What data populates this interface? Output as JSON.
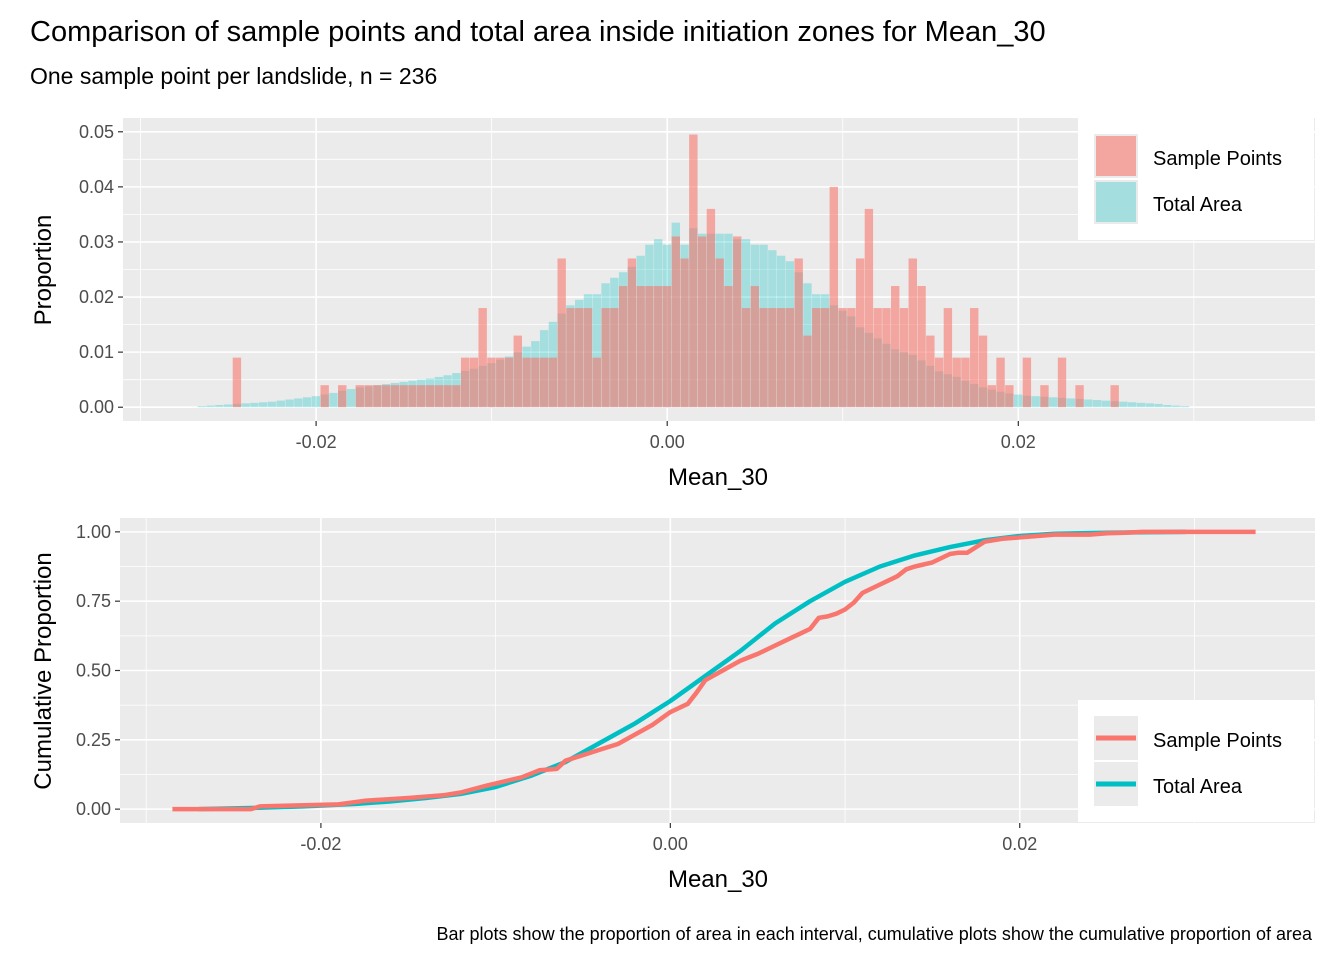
{
  "title": "Comparison of sample points and total area inside initiation zones for Mean_30",
  "subtitle": "One sample point per landslide, n = 236",
  "caption": "Bar plots show the proportion of area in each interval, cumulative plots show the cumulative proportion of area",
  "colors": {
    "sample": "#F8766D",
    "total": "#00BFC4",
    "panel_bg": "#EBEBEB",
    "grid": "#FFFFFF",
    "overlap": "#A3A3A3"
  },
  "chart_data": [
    {
      "type": "bar",
      "xlabel": "Mean_30",
      "ylabel": "Proportion",
      "xlim": [
        -0.031,
        0.0369
      ],
      "ylim": [
        -0.0025,
        0.0525
      ],
      "xticks": [
        "-0.02",
        "0.00",
        "0.02"
      ],
      "xtick_values": [
        -0.02,
        0.0,
        0.02
      ],
      "yticks": [
        "0.00",
        "0.01",
        "0.02",
        "0.03",
        "0.04",
        "0.05"
      ],
      "ytick_values": [
        0.0,
        0.01,
        0.02,
        0.03,
        0.04,
        0.05
      ],
      "legend_position": "top-right",
      "bin_width": 0.0005,
      "series": [
        {
          "name": "Sample Points",
          "color": "#F8766D",
          "bins": [
            [
              -0.0245,
              0.009
            ],
            [
              -0.0195,
              0.004
            ],
            [
              -0.0185,
              0.004
            ],
            [
              -0.0175,
              0.004
            ],
            [
              -0.017,
              0.004
            ],
            [
              -0.0165,
              0.004
            ],
            [
              -0.016,
              0.004
            ],
            [
              -0.0155,
              0.004
            ],
            [
              -0.015,
              0.004
            ],
            [
              -0.0145,
              0.004
            ],
            [
              -0.014,
              0.004
            ],
            [
              -0.0135,
              0.004
            ],
            [
              -0.013,
              0.004
            ],
            [
              -0.0125,
              0.004
            ],
            [
              -0.012,
              0.004
            ],
            [
              -0.0115,
              0.009
            ],
            [
              -0.011,
              0.009
            ],
            [
              -0.0105,
              0.018
            ],
            [
              -0.01,
              0.009
            ],
            [
              -0.0095,
              0.009
            ],
            [
              -0.009,
              0.009
            ],
            [
              -0.0085,
              0.013
            ],
            [
              -0.008,
              0.009
            ],
            [
              -0.0075,
              0.009
            ],
            [
              -0.007,
              0.009
            ],
            [
              -0.0065,
              0.009
            ],
            [
              -0.006,
              0.027
            ],
            [
              -0.0055,
              0.018
            ],
            [
              -0.005,
              0.018
            ],
            [
              -0.0045,
              0.018
            ],
            [
              -0.004,
              0.009
            ],
            [
              -0.0035,
              0.018
            ],
            [
              -0.003,
              0.018
            ],
            [
              -0.0025,
              0.022
            ],
            [
              -0.002,
              0.027
            ],
            [
              -0.0015,
              0.022
            ],
            [
              -0.001,
              0.022
            ],
            [
              -0.0005,
              0.022
            ],
            [
              0.0,
              0.022
            ],
            [
              0.0005,
              0.031
            ],
            [
              0.001,
              0.027
            ],
            [
              0.0015,
              0.0495
            ],
            [
              0.002,
              0.031
            ],
            [
              0.0025,
              0.036
            ],
            [
              0.003,
              0.027
            ],
            [
              0.0035,
              0.022
            ],
            [
              0.004,
              0.031
            ],
            [
              0.0045,
              0.018
            ],
            [
              0.005,
              0.022
            ],
            [
              0.0055,
              0.018
            ],
            [
              0.006,
              0.018
            ],
            [
              0.0065,
              0.018
            ],
            [
              0.007,
              0.018
            ],
            [
              0.0075,
              0.027
            ],
            [
              0.008,
              0.013
            ],
            [
              0.0085,
              0.018
            ],
            [
              0.009,
              0.018
            ],
            [
              0.0095,
              0.04
            ],
            [
              0.01,
              0.018
            ],
            [
              0.0105,
              0.018
            ],
            [
              0.011,
              0.027
            ],
            [
              0.0115,
              0.036
            ],
            [
              0.012,
              0.018
            ],
            [
              0.0125,
              0.018
            ],
            [
              0.013,
              0.022
            ],
            [
              0.0135,
              0.018
            ],
            [
              0.014,
              0.027
            ],
            [
              0.0145,
              0.022
            ],
            [
              0.015,
              0.013
            ],
            [
              0.0155,
              0.009
            ],
            [
              0.016,
              0.018
            ],
            [
              0.0165,
              0.009
            ],
            [
              0.017,
              0.009
            ],
            [
              0.0175,
              0.018
            ],
            [
              0.018,
              0.013
            ],
            [
              0.0185,
              0.004
            ],
            [
              0.019,
              0.009
            ],
            [
              0.0195,
              0.004
            ],
            [
              0.0205,
              0.009
            ],
            [
              0.0215,
              0.004
            ],
            [
              0.0225,
              0.009
            ],
            [
              0.0235,
              0.004
            ],
            [
              0.0255,
              0.004
            ]
          ]
        },
        {
          "name": "Total Area",
          "color": "#00BFC4",
          "bins": [
            [
              -0.0265,
              0.0002
            ],
            [
              -0.026,
              0.0003
            ],
            [
              -0.0255,
              0.0004
            ],
            [
              -0.025,
              0.0005
            ],
            [
              -0.0245,
              0.0006
            ],
            [
              -0.024,
              0.0007
            ],
            [
              -0.0235,
              0.0008
            ],
            [
              -0.023,
              0.0009
            ],
            [
              -0.0225,
              0.001
            ],
            [
              -0.022,
              0.0012
            ],
            [
              -0.0215,
              0.0014
            ],
            [
              -0.021,
              0.0016
            ],
            [
              -0.0205,
              0.0018
            ],
            [
              -0.02,
              0.002
            ],
            [
              -0.0195,
              0.0023
            ],
            [
              -0.019,
              0.0026
            ],
            [
              -0.0185,
              0.003
            ],
            [
              -0.018,
              0.0033
            ],
            [
              -0.0175,
              0.0036
            ],
            [
              -0.017,
              0.0038
            ],
            [
              -0.0165,
              0.004
            ],
            [
              -0.016,
              0.0042
            ],
            [
              -0.0155,
              0.0044
            ],
            [
              -0.015,
              0.0046
            ],
            [
              -0.0145,
              0.0048
            ],
            [
              -0.014,
              0.005
            ],
            [
              -0.0135,
              0.0052
            ],
            [
              -0.013,
              0.0055
            ],
            [
              -0.0125,
              0.0058
            ],
            [
              -0.012,
              0.0062
            ],
            [
              -0.0115,
              0.0066
            ],
            [
              -0.011,
              0.007
            ],
            [
              -0.0105,
              0.0075
            ],
            [
              -0.01,
              0.008
            ],
            [
              -0.0095,
              0.0086
            ],
            [
              -0.009,
              0.0092
            ],
            [
              -0.0085,
              0.01
            ],
            [
              -0.008,
              0.011
            ],
            [
              -0.0075,
              0.012
            ],
            [
              -0.007,
              0.014
            ],
            [
              -0.0065,
              0.0155
            ],
            [
              -0.006,
              0.017
            ],
            [
              -0.0055,
              0.0185
            ],
            [
              -0.005,
              0.0195
            ],
            [
              -0.0045,
              0.0205
            ],
            [
              -0.004,
              0.0205
            ],
            [
              -0.0035,
              0.0225
            ],
            [
              -0.003,
              0.0235
            ],
            [
              -0.0025,
              0.0245
            ],
            [
              -0.002,
              0.0255
            ],
            [
              -0.0015,
              0.0275
            ],
            [
              -0.001,
              0.0295
            ],
            [
              -0.0005,
              0.0305
            ],
            [
              0.0,
              0.0295
            ],
            [
              0.0005,
              0.0335
            ],
            [
              0.001,
              0.0295
            ],
            [
              0.0015,
              0.0325
            ],
            [
              0.002,
              0.0315
            ],
            [
              0.0025,
              0.0315
            ],
            [
              0.003,
              0.0315
            ],
            [
              0.0035,
              0.0315
            ],
            [
              0.004,
              0.0305
            ],
            [
              0.0045,
              0.0305
            ],
            [
              0.005,
              0.0295
            ],
            [
              0.0055,
              0.0295
            ],
            [
              0.006,
              0.0285
            ],
            [
              0.0065,
              0.0275
            ],
            [
              0.007,
              0.0265
            ],
            [
              0.0075,
              0.0245
            ],
            [
              0.008,
              0.0225
            ],
            [
              0.0085,
              0.0205
            ],
            [
              0.009,
              0.0205
            ],
            [
              0.0095,
              0.0185
            ],
            [
              0.01,
              0.0175
            ],
            [
              0.0105,
              0.0165
            ],
            [
              0.011,
              0.0145
            ],
            [
              0.0115,
              0.0135
            ],
            [
              0.012,
              0.0125
            ],
            [
              0.0125,
              0.0115
            ],
            [
              0.013,
              0.0105
            ],
            [
              0.0135,
              0.01
            ],
            [
              0.014,
              0.0095
            ],
            [
              0.0145,
              0.0085
            ],
            [
              0.015,
              0.0075
            ],
            [
              0.0155,
              0.0065
            ],
            [
              0.016,
              0.006
            ],
            [
              0.0165,
              0.0055
            ],
            [
              0.017,
              0.0048
            ],
            [
              0.0175,
              0.0042
            ],
            [
              0.018,
              0.0036
            ],
            [
              0.0185,
              0.0032
            ],
            [
              0.019,
              0.0028
            ],
            [
              0.0195,
              0.0025
            ],
            [
              0.02,
              0.0023
            ],
            [
              0.0205,
              0.0021
            ],
            [
              0.021,
              0.002
            ],
            [
              0.0215,
              0.0019
            ],
            [
              0.022,
              0.0018
            ],
            [
              0.0225,
              0.0017
            ],
            [
              0.023,
              0.0016
            ],
            [
              0.0235,
              0.0015
            ],
            [
              0.024,
              0.0014
            ],
            [
              0.0245,
              0.0013
            ],
            [
              0.025,
              0.0012
            ],
            [
              0.0255,
              0.0011
            ],
            [
              0.026,
              0.001
            ],
            [
              0.0265,
              0.0009
            ],
            [
              0.027,
              0.0008
            ],
            [
              0.0275,
              0.0007
            ],
            [
              0.028,
              0.0006
            ],
            [
              0.0285,
              0.0004
            ],
            [
              0.029,
              0.0003
            ],
            [
              0.0295,
              0.0002
            ]
          ]
        }
      ]
    },
    {
      "type": "line",
      "xlabel": "Mean_30",
      "ylabel": "Cumulative Proportion",
      "xlim": [
        -0.0315,
        0.0369
      ],
      "ylim": [
        -0.05,
        1.05
      ],
      "xticks": [
        "-0.02",
        "0.00",
        "0.02"
      ],
      "xtick_values": [
        -0.02,
        0.0,
        0.02
      ],
      "yticks": [
        "0.00",
        "0.25",
        "0.50",
        "0.75",
        "1.00"
      ],
      "ytick_values": [
        0.0,
        0.25,
        0.5,
        0.75,
        1.0
      ],
      "legend_position": "bottom-right",
      "series": [
        {
          "name": "Sample Points",
          "color": "#F8766D",
          "x": [
            -0.0285,
            -0.024,
            -0.0235,
            -0.019,
            -0.0175,
            -0.015,
            -0.013,
            -0.012,
            -0.0105,
            -0.0095,
            -0.0085,
            -0.0075,
            -0.0065,
            -0.006,
            -0.005,
            -0.004,
            -0.003,
            -0.002,
            -0.001,
            0.0,
            0.001,
            0.0015,
            0.002,
            0.003,
            0.004,
            0.005,
            0.006,
            0.007,
            0.0075,
            0.008,
            0.0085,
            0.009,
            0.0095,
            0.01,
            0.0105,
            0.011,
            0.012,
            0.013,
            0.0135,
            0.014,
            0.015,
            0.016,
            0.0165,
            0.017,
            0.0175,
            0.018,
            0.019,
            0.02,
            0.021,
            0.022,
            0.024,
            0.025,
            0.026,
            0.027,
            0.0335
          ],
          "y": [
            0.0,
            0.0,
            0.01,
            0.017,
            0.03,
            0.04,
            0.05,
            0.06,
            0.085,
            0.1,
            0.115,
            0.14,
            0.145,
            0.175,
            0.195,
            0.215,
            0.235,
            0.27,
            0.305,
            0.35,
            0.38,
            0.42,
            0.465,
            0.5,
            0.535,
            0.56,
            0.59,
            0.62,
            0.635,
            0.65,
            0.69,
            0.695,
            0.705,
            0.72,
            0.745,
            0.78,
            0.81,
            0.84,
            0.865,
            0.875,
            0.89,
            0.92,
            0.925,
            0.925,
            0.945,
            0.965,
            0.975,
            0.98,
            0.985,
            0.99,
            0.99,
            0.995,
            0.997,
            1.0,
            1.0
          ]
        },
        {
          "name": "Total Area",
          "color": "#00BFC4",
          "x": [
            -0.027,
            -0.024,
            -0.021,
            -0.018,
            -0.016,
            -0.014,
            -0.012,
            -0.01,
            -0.008,
            -0.006,
            -0.004,
            -0.002,
            0.0,
            0.002,
            0.004,
            0.006,
            0.008,
            0.01,
            0.012,
            0.014,
            0.016,
            0.018,
            0.02,
            0.022,
            0.025,
            0.028,
            0.0295
          ],
          "y": [
            0.0,
            0.004,
            0.01,
            0.019,
            0.028,
            0.04,
            0.055,
            0.08,
            0.12,
            0.17,
            0.24,
            0.31,
            0.39,
            0.48,
            0.57,
            0.67,
            0.75,
            0.82,
            0.875,
            0.915,
            0.945,
            0.97,
            0.985,
            0.993,
            0.997,
            0.999,
            1.0
          ]
        }
      ]
    }
  ]
}
